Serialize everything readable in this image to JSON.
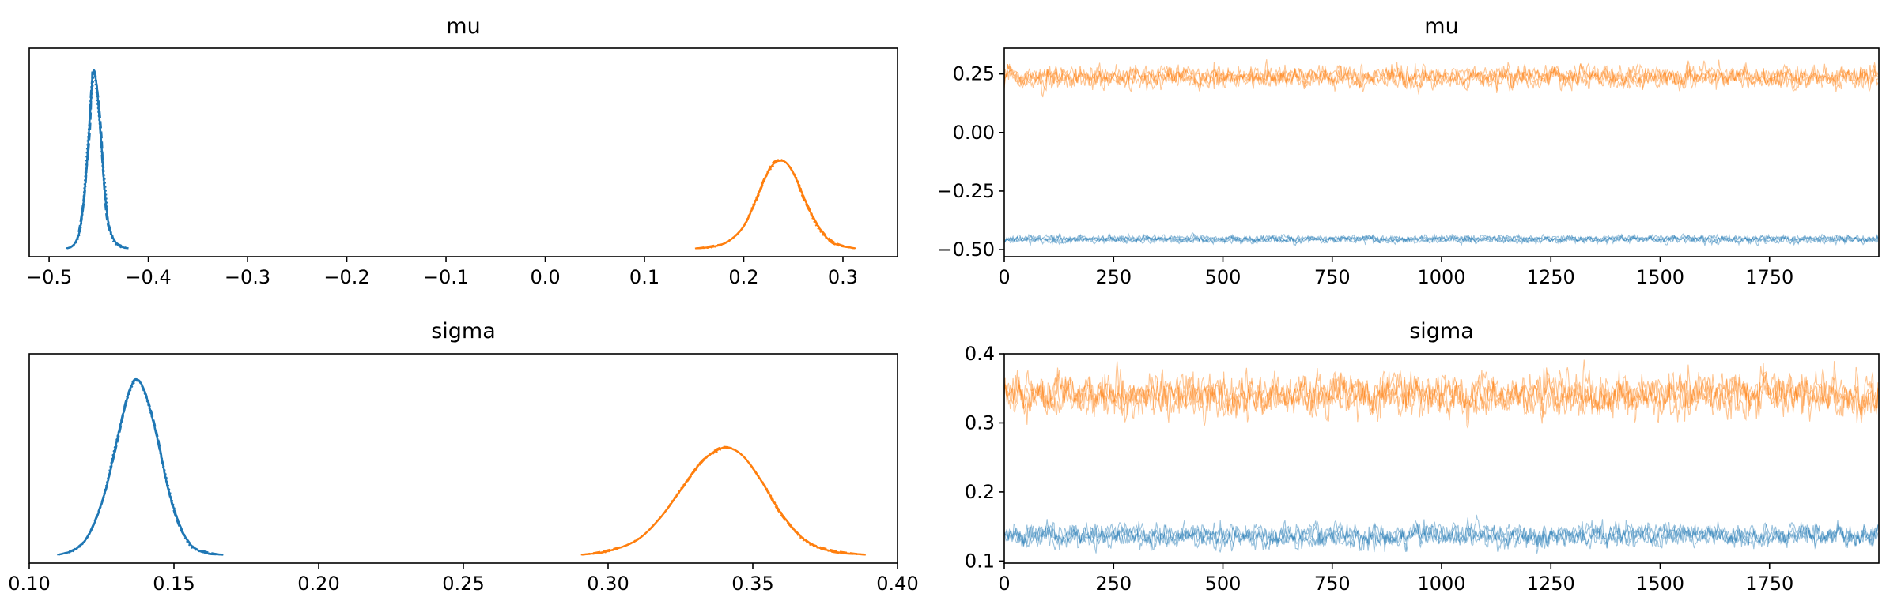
{
  "colors": {
    "chain_a": "#1f77b4",
    "chain_b": "#ff7f0e"
  },
  "chart_data": [
    {
      "type": "line",
      "subtype": "kde",
      "title": "mu",
      "xlim": [
        -0.52,
        0.355
      ],
      "xticks": [
        -0.5,
        -0.4,
        -0.3,
        -0.2,
        -0.1,
        0.0,
        0.1,
        0.2,
        0.3
      ],
      "xtick_labels": [
        "−0.5",
        "−0.4",
        "−0.3",
        "−0.2",
        "−0.1",
        "0.0",
        "0.1",
        "0.2",
        "0.3"
      ],
      "yticks": [],
      "series": [
        {
          "color": "#1f77b4",
          "x": [
            -0.482,
            -0.475,
            -0.469,
            -0.464,
            -0.46,
            -0.457,
            -0.455,
            -0.452,
            -0.448,
            -0.444,
            -0.44,
            -0.434,
            -0.428,
            -0.42
          ],
          "y": [
            0.0,
            0.02,
            0.1,
            0.32,
            0.62,
            0.88,
            0.97,
            0.88,
            0.62,
            0.32,
            0.13,
            0.04,
            0.01,
            0.0
          ]
        },
        {
          "color": "#ff7f0e",
          "x": [
            0.152,
            0.17,
            0.185,
            0.2,
            0.212,
            0.222,
            0.23,
            0.237,
            0.244,
            0.252,
            0.262,
            0.275,
            0.29,
            0.312
          ],
          "y": [
            0.0,
            0.01,
            0.04,
            0.12,
            0.26,
            0.39,
            0.46,
            0.48,
            0.46,
            0.39,
            0.26,
            0.12,
            0.03,
            0.0
          ]
        }
      ]
    },
    {
      "type": "line",
      "subtype": "trace",
      "title": "mu",
      "xlim": [
        0,
        2000
      ],
      "ylim": [
        -0.53,
        0.36
      ],
      "xticks": [
        0,
        250,
        500,
        750,
        1000,
        1250,
        1500,
        1750
      ],
      "xtick_labels": [
        "0",
        "250",
        "500",
        "750",
        "1000",
        "1250",
        "1500",
        "1750"
      ],
      "yticks": [
        -0.5,
        -0.25,
        0.0,
        0.25
      ],
      "ytick_labels": [
        "−0.50",
        "−0.25",
        "0.00",
        "0.25"
      ],
      "draws": 2000,
      "series": [
        {
          "color": "#ff7f0e",
          "mean": 0.237,
          "sd": 0.022
        },
        {
          "color": "#1f77b4",
          "mean": -0.455,
          "sd": 0.008
        }
      ]
    },
    {
      "type": "line",
      "subtype": "kde",
      "title": "sigma",
      "xlim": [
        0.1,
        0.4
      ],
      "xticks": [
        0.1,
        0.15,
        0.2,
        0.25,
        0.3,
        0.35,
        0.4
      ],
      "xtick_labels": [
        "0.10",
        "0.15",
        "0.20",
        "0.25",
        "0.30",
        "0.35",
        "0.40"
      ],
      "yticks": [],
      "series": [
        {
          "color": "#1f77b4",
          "x": [
            0.11,
            0.116,
            0.121,
            0.126,
            0.13,
            0.134,
            0.137,
            0.14,
            0.144,
            0.148,
            0.152,
            0.156,
            0.161,
            0.167
          ],
          "y": [
            0.0,
            0.03,
            0.12,
            0.33,
            0.6,
            0.86,
            0.95,
            0.88,
            0.65,
            0.36,
            0.16,
            0.05,
            0.01,
            0.0
          ]
        },
        {
          "color": "#ff7f0e",
          "x": [
            0.291,
            0.3,
            0.31,
            0.318,
            0.325,
            0.332,
            0.338,
            0.342,
            0.347,
            0.353,
            0.36,
            0.368,
            0.377,
            0.389
          ],
          "y": [
            0.0,
            0.02,
            0.08,
            0.2,
            0.35,
            0.5,
            0.57,
            0.58,
            0.53,
            0.4,
            0.22,
            0.08,
            0.02,
            0.0
          ]
        }
      ]
    },
    {
      "type": "line",
      "subtype": "trace",
      "title": "sigma",
      "xlim": [
        0,
        2000
      ],
      "ylim": [
        0.097,
        0.4
      ],
      "xticks": [
        0,
        250,
        500,
        750,
        1000,
        1250,
        1500,
        1750
      ],
      "xtick_labels": [
        "0",
        "250",
        "500",
        "750",
        "1000",
        "1250",
        "1500",
        "1750"
      ],
      "yticks": [
        0.1,
        0.2,
        0.3,
        0.4
      ],
      "ytick_labels": [
        "0.1",
        "0.2",
        "0.3",
        "0.4"
      ],
      "draws": 2000,
      "series": [
        {
          "color": "#ff7f0e",
          "mean": 0.34,
          "sd": 0.014
        },
        {
          "color": "#1f77b4",
          "mean": 0.137,
          "sd": 0.008
        }
      ]
    }
  ]
}
